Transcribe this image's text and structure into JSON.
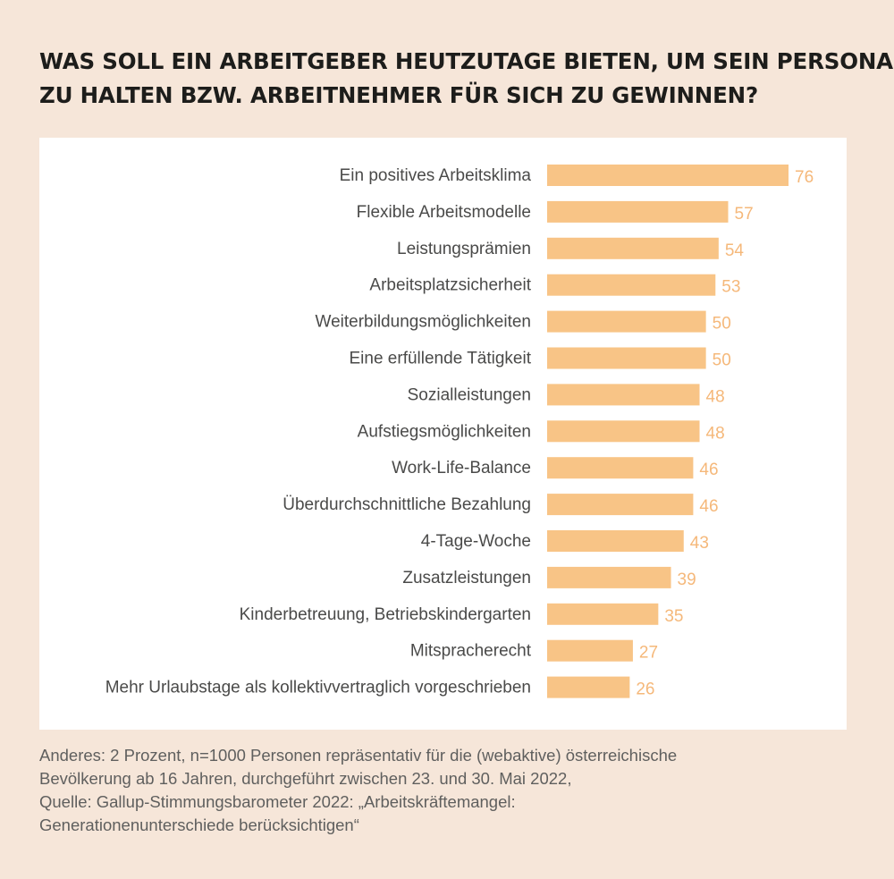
{
  "title_lines": [
    "WAS SOLL EIN ARBEITGEBER HEUTZUTAGE BIETEN, UM SEIN PERSONAL",
    "ZU HALTEN BZW. ARBEITNEHMER FÜR SICH ZU GEWINNEN?"
  ],
  "footnote_lines": [
    "Anderes: 2 Prozent, n=1000 Personen repräsentativ für die (webaktive) österreichische",
    "Bevölkerung ab 16 Jahren, durchgeführt zwischen 23. und 30. Mai 2022,",
    "Quelle: Gallup-Stimmungsbarometer 2022: „Arbeitskräftemangel:",
    "Generationenunterschiede berücksichtigen“"
  ],
  "colors": {
    "background": "#f6e6d9",
    "bar": "#f8c486",
    "value_label": "#f5b87a",
    "category_label": "#4a4a49",
    "title": "#1d1d1b"
  },
  "chart_data": {
    "type": "bar",
    "orientation": "horizontal",
    "title": "WAS SOLL EIN ARBEITGEBER HEUTZUTAGE BIETEN, UM SEIN PERSONAL ZU HALTEN BZW. ARBEITNEHMER FÜR SICH ZU GEWINNEN?",
    "categories": [
      "Ein positives Arbeitsklima",
      "Flexible Arbeitsmodelle",
      "Leistungsprämien",
      "Arbeitsplatzsicherheit",
      "Weiterbildungsmöglichkeiten",
      "Eine erfüllende Tätigkeit",
      "Sozialleistungen",
      "Aufstiegsmöglichkeiten",
      "Work-Life-Balance",
      "Überdurchschnittliche Bezahlung",
      "4-Tage-Woche",
      "Zusatzleistungen",
      "Kinderbetreuung, Betriebskindergarten",
      "Mitspracherecht",
      "Mehr Urlaubstage als kollektivvertraglich vorgeschrieben"
    ],
    "values": [
      76,
      57,
      54,
      53,
      50,
      50,
      48,
      48,
      46,
      46,
      43,
      39,
      35,
      27,
      26
    ],
    "xlim": [
      0,
      76
    ],
    "grid": false,
    "legend": "none"
  }
}
